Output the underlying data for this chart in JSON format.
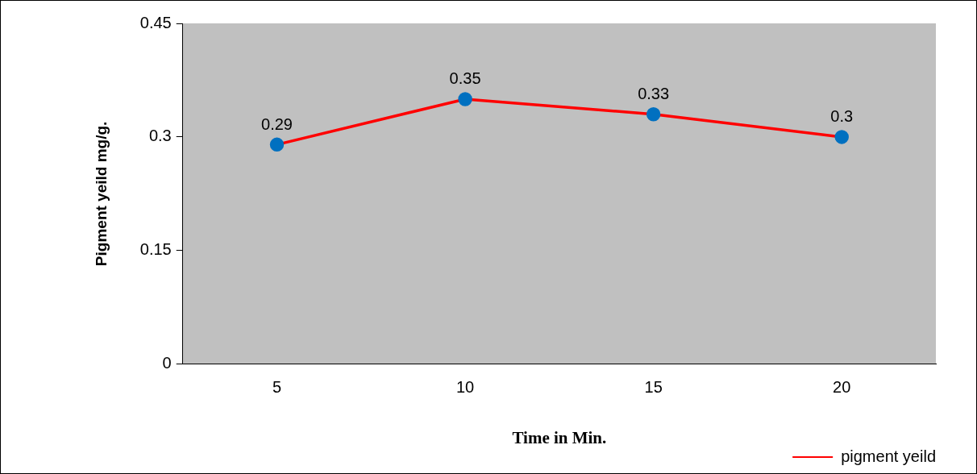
{
  "chart_data": {
    "type": "line",
    "xlabel": "Time in Min.",
    "ylabel": "Pigment yeild mg/g.",
    "categories": [
      "5",
      "10",
      "15",
      "20"
    ],
    "series": [
      {
        "name": "pigment yeild",
        "color": "#ff0000",
        "colors": [
          "#0070c0",
          "#0070c0",
          "#0070c0",
          "#0070c0"
        ],
        "values": [
          0.29,
          0.35,
          0.33,
          0.3
        ]
      }
    ],
    "ylim": [
      0,
      0.45
    ],
    "yticks": [
      0,
      0.15,
      0.3,
      0.45
    ],
    "grid": false,
    "legend": "bottom right",
    "marker": "circle",
    "line_style": "solid",
    "data_labels": true
  }
}
